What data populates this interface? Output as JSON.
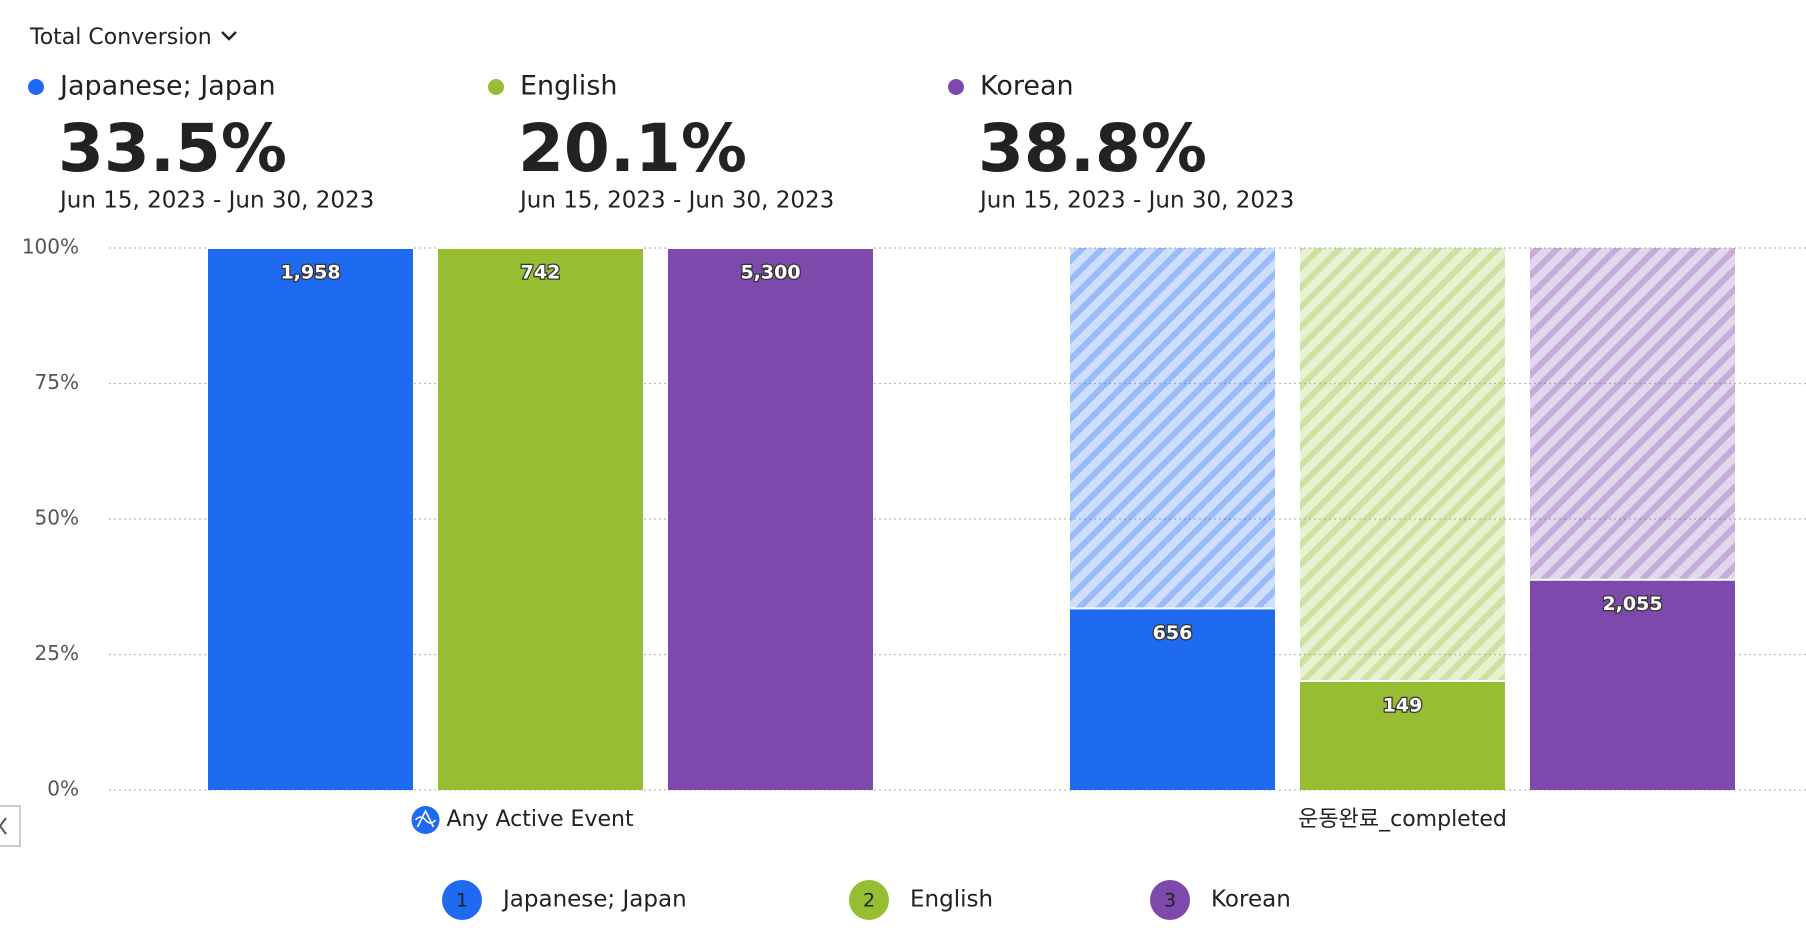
{
  "header": {
    "title": "Total Conversion"
  },
  "chart_data": {
    "type": "funnel-bar",
    "categories": [
      "Any Active Event",
      "운동완료_completed"
    ],
    "ylim": [
      0,
      100
    ],
    "yticks": [
      {
        "value": 0,
        "label": "0%"
      },
      {
        "value": 25,
        "label": "25%"
      },
      {
        "value": 50,
        "label": "50%"
      },
      {
        "value": 75,
        "label": "75%"
      },
      {
        "value": 100,
        "label": "100%"
      }
    ],
    "grid": true,
    "series": [
      {
        "name": "Japanese; Japan",
        "number": 1,
        "color": "#1e6af0",
        "values": [
          100,
          33.5
        ],
        "conversion": "33.5%",
        "date_range": "Jun 15, 2023 - Jun 30, 2023",
        "counts": [
          {
            "value": 1958,
            "label": "1,958"
          },
          {
            "value": 656,
            "label": "656"
          }
        ]
      },
      {
        "name": "English",
        "number": 2,
        "color": "#97bd32",
        "values": [
          100,
          20.1
        ],
        "conversion": "20.1%",
        "date_range": "Jun 15, 2023 - Jun 30, 2023",
        "counts": [
          {
            "value": 742,
            "label": "742"
          },
          {
            "value": 149,
            "label": "149"
          }
        ]
      },
      {
        "name": "Korean",
        "number": 3,
        "color": "#7e49ad",
        "values": [
          100,
          38.8
        ],
        "conversion": "38.8%",
        "date_range": "Jun 15, 2023 - Jun 30, 2023",
        "counts": [
          {
            "value": 5300,
            "label": "5,300"
          },
          {
            "value": 2055,
            "label": "2,055"
          }
        ]
      }
    ]
  }
}
